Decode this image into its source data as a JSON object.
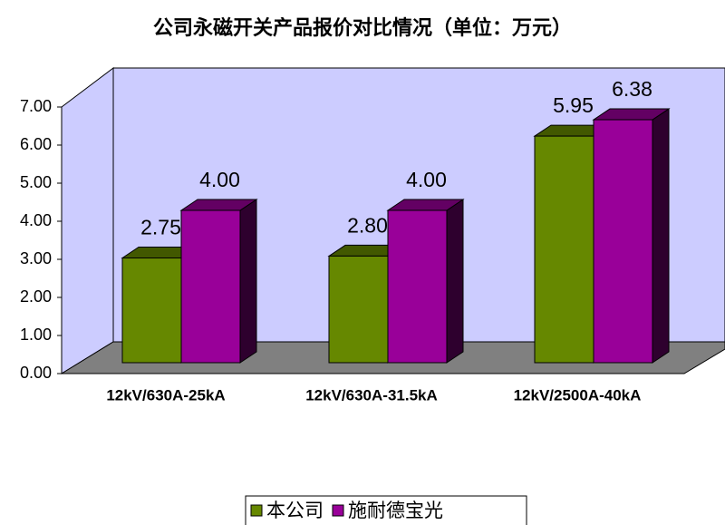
{
  "chart_data": {
    "type": "bar3d",
    "title": "公司永磁开关产品报价对比情况（单位：万元）",
    "categories": [
      "12kV/630A-25kA",
      "12kV/630A-31.5kA",
      "12kV/2500A-40kA"
    ],
    "series": [
      {
        "name": "本公司",
        "color": "#668800",
        "values": [
          2.75,
          2.8,
          5.95
        ],
        "value_labels": [
          "2.75",
          "2.80",
          "5.95"
        ]
      },
      {
        "name": "施耐德宝光",
        "color": "#990099",
        "values": [
          4.0,
          4.0,
          6.38
        ],
        "value_labels": [
          "4.00",
          "4.00",
          "6.38"
        ]
      }
    ],
    "ylim": [
      0,
      7
    ],
    "yticks": [
      {
        "value": 0,
        "label": "0.00"
      },
      {
        "value": 1,
        "label": "1.00"
      },
      {
        "value": 2,
        "label": "2.00"
      },
      {
        "value": 3,
        "label": "3.00"
      },
      {
        "value": 4,
        "label": "4.00"
      },
      {
        "value": 5,
        "label": "5.00"
      },
      {
        "value": 6,
        "label": "6.00"
      },
      {
        "value": 7,
        "label": "7.00"
      }
    ],
    "grid": false,
    "legend": "bottom"
  }
}
